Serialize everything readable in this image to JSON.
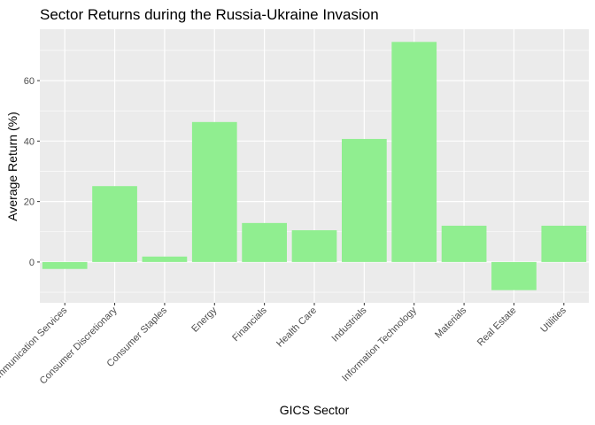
{
  "chart_data": {
    "type": "bar",
    "title": "Sector Returns during the Russia-Ukraine Invasion",
    "xlabel": "GICS Sector",
    "ylabel": "Average Return (%)",
    "categories": [
      "Communication Services",
      "Consumer Discretionary",
      "Consumer Staples",
      "Energy",
      "Financials",
      "Health Care",
      "Industrials",
      "Information Technology",
      "Materials",
      "Real Estate",
      "Utilities"
    ],
    "values": [
      -2.3,
      25.1,
      1.8,
      46.3,
      12.9,
      10.5,
      40.7,
      72.8,
      12.0,
      -9.3,
      12.0
    ],
    "ylim": [
      -13.5,
      77
    ],
    "yticks": [
      0,
      20,
      40,
      60
    ],
    "grid": true,
    "colors": {
      "bar": "#90ee90",
      "panel": "#ebebeb",
      "grid_major": "#ffffff"
    }
  }
}
